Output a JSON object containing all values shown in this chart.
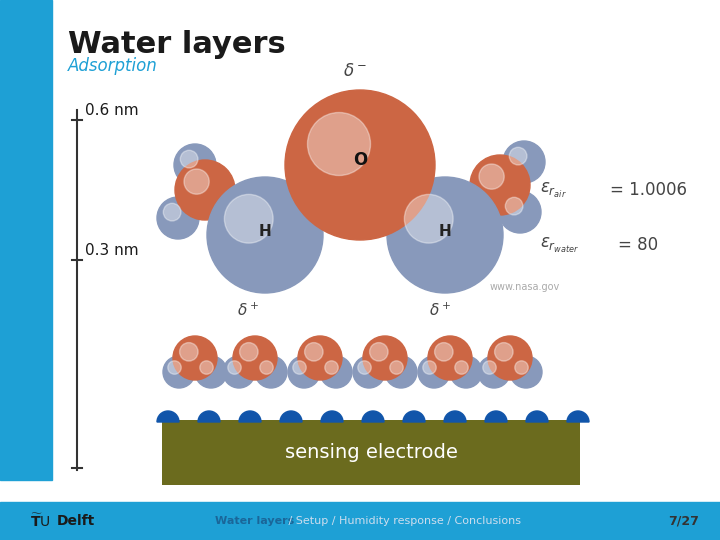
{
  "title": "Water layers",
  "subtitle": "Adsorption",
  "label_06": "0.6 nm",
  "label_03": "0.3 nm",
  "nasa_text": "www.nasa.gov",
  "sensing_text": "sensing electrode",
  "footer_center_blue": "Water layers",
  "footer_center_rest": " / Setup / Humidity response / Conclusions",
  "footer_right": "7/27",
  "bg_color": "#ffffff",
  "left_bar_color": "#1EA0D5",
  "title_color": "#1a1a1a",
  "subtitle_color": "#1EA0D5",
  "label_color": "#1a1a1a",
  "sensing_bg_color": "#6b6b1e",
  "sensing_text_color": "#ffffff",
  "footer_bar_color": "#1EA0D5",
  "oxygen_color": "#cc6644",
  "hydrogen_color": "#8899bb",
  "small_o_color": "#cc6644",
  "small_h_color": "#8899bb"
}
